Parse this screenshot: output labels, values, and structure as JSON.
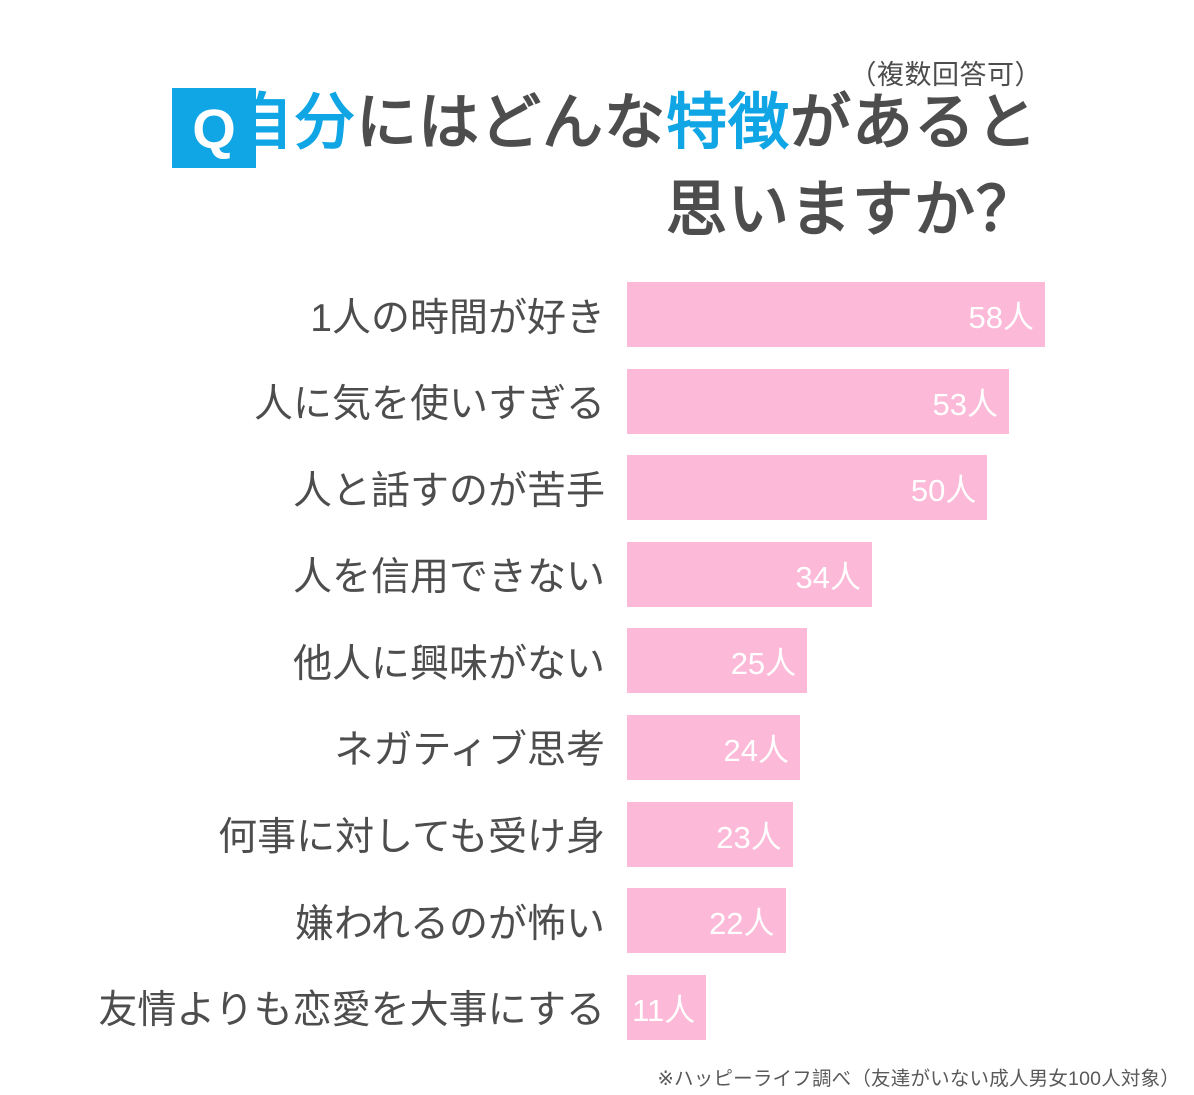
{
  "header": {
    "note": "（複数回答可）",
    "q_label": "Q",
    "title_part1": "自分",
    "title_part2": "にはどんな",
    "title_part3": "特徴",
    "title_part4": "があると",
    "title_line2": "思いますか？"
  },
  "chart_data": {
    "type": "bar",
    "orientation": "horizontal",
    "title": "自分にはどんな特徴があると思いますか？",
    "subtitle": "（複数回答可）",
    "unit": "人",
    "categories": [
      "1人の時間が好き",
      "人に気を使いすぎる",
      "人と話すのが苦手",
      "人を信用できない",
      "他人に興味がない",
      "ネガティブ思考",
      "何事に対しても受け身",
      "嫌われるのが怖い",
      "友情よりも恋愛を大事にする"
    ],
    "values": [
      58,
      53,
      50,
      34,
      25,
      24,
      23,
      22,
      11
    ],
    "value_labels": [
      "58人",
      "53人",
      "50人",
      "34人",
      "25人",
      "24人",
      "23人",
      "22人",
      "11人"
    ],
    "xlim": [
      0,
      58
    ],
    "grid": false,
    "legend": false,
    "value_label_position": "inside-end",
    "bar_color": "#fcb9d8"
  },
  "footer": {
    "source": "※ハッピーライフ調べ（友達がいない成人男女100人対象）"
  },
  "colors": {
    "accent_blue": "#10a5e4",
    "bar_pink": "#fcb9d8",
    "text_dark": "#4d4d4d",
    "value_text": "#ffffff",
    "footer_gray": "#595959"
  }
}
